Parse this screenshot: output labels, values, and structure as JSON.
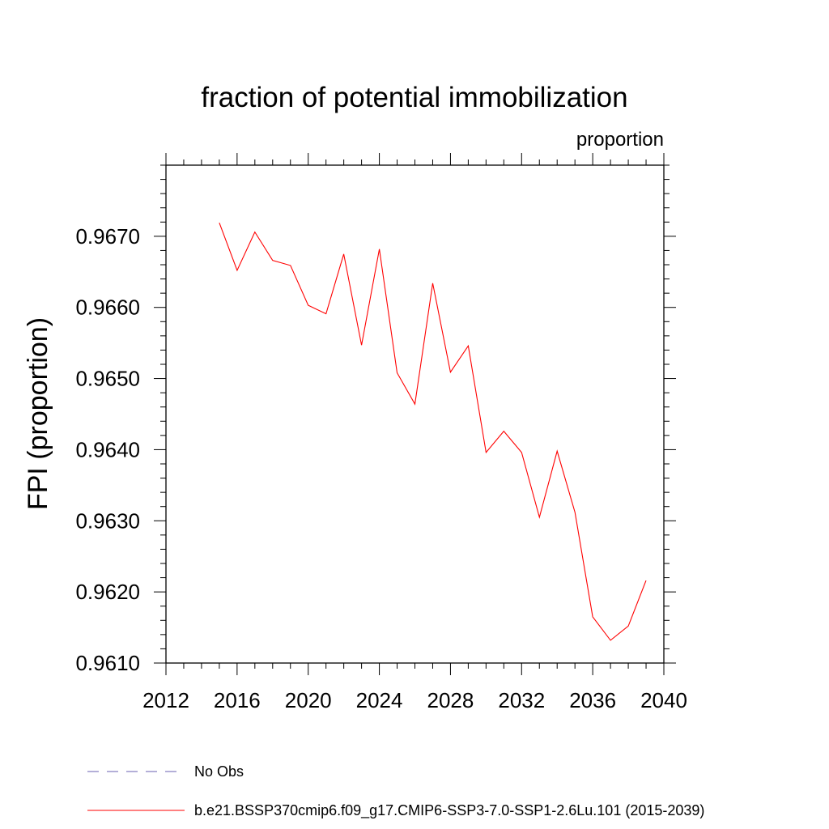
{
  "chart_data": {
    "type": "line",
    "title": "fraction of potential immobilization",
    "subtitle": "proportion",
    "xlabel": "",
    "ylabel": "FPI  (proportion)",
    "xlim": [
      2012,
      2040
    ],
    "ylim": [
      0.961,
      0.968
    ],
    "xticks": [
      2012,
      2016,
      2020,
      2024,
      2028,
      2032,
      2036,
      2040
    ],
    "xtick_labels": [
      "2012",
      "2016",
      "2020",
      "2024",
      "2028",
      "2032",
      "2036",
      "2040"
    ],
    "yticks": [
      0.961,
      0.962,
      0.963,
      0.964,
      0.965,
      0.966,
      0.967
    ],
    "ytick_labels": [
      "0.9610",
      "0.9620",
      "0.9630",
      "0.9640",
      "0.9650",
      "0.9660",
      "0.9670"
    ],
    "grid": false,
    "series": [
      {
        "name": "b.e21.BSSP370cmip6.f09_g17.CMIP6-SSP3-7.0-SSP1-2.6Lu.101 (2015-2039)",
        "color": "#ff0000",
        "style": "solid",
        "x": [
          2015,
          2016,
          2017,
          2018,
          2019,
          2020,
          2021,
          2022,
          2023,
          2024,
          2025,
          2026,
          2027,
          2028,
          2029,
          2030,
          2031,
          2032,
          2033,
          2034,
          2035,
          2036,
          2037,
          2038,
          2039
        ],
        "values": [
          0.96719,
          0.96652,
          0.96706,
          0.96666,
          0.96659,
          0.96603,
          0.96591,
          0.96675,
          0.96547,
          0.96682,
          0.96508,
          0.96464,
          0.96634,
          0.96509,
          0.96546,
          0.96396,
          0.96426,
          0.96396,
          0.96305,
          0.96398,
          0.96312,
          0.96165,
          0.96132,
          0.96152,
          0.96216
        ]
      }
    ],
    "legend": {
      "placement": "bottom-left",
      "entries": [
        {
          "label": "No Obs",
          "color": "#6a5fb0",
          "style": "dashed"
        },
        {
          "label": "b.e21.BSSP370cmip6.f09_g17.CMIP6-SSP3-7.0-SSP1-2.6Lu.101 (2015-2039)",
          "color": "#ff0000",
          "style": "solid"
        }
      ]
    }
  }
}
